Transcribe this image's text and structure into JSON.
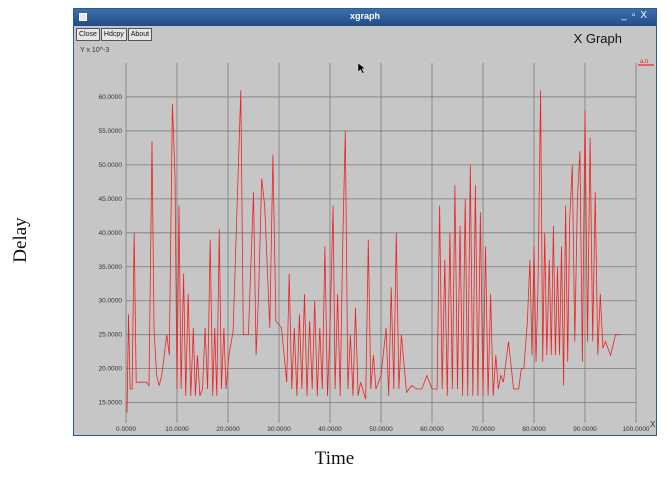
{
  "figure_labels": {
    "y_axis": "Delay",
    "x_axis": "Time"
  },
  "window": {
    "title": "xgraph",
    "controls": [
      "_",
      "▫",
      "X"
    ],
    "buttons": [
      {
        "label": "Close",
        "name": "close-button"
      },
      {
        "label": "Hdcpy",
        "name": "hardcopy-button"
      },
      {
        "label": "About",
        "name": "about-button"
      }
    ],
    "graph_title": "X Graph"
  },
  "colors": {
    "series": "#ee2222",
    "grid": "#7a7a7a",
    "panel": "#c6c6c6",
    "titlebar": "#2f5f9c"
  },
  "chart_data": {
    "type": "line",
    "title": "X Graph",
    "y_unit_label": "Y x 10^-3",
    "x_unit_label": "X",
    "legend": [
      {
        "name": "a.tr",
        "color": "#ee2222"
      }
    ],
    "legend_position": "top-right",
    "grid": true,
    "xlim": [
      0,
      100
    ],
    "ylim": [
      12,
      65
    ],
    "x_ticks": [
      "0.0000",
      "10.0000",
      "20.0000",
      "30.0000",
      "40.0000",
      "50.0000",
      "60.0000",
      "70.0000",
      "80.0000",
      "90.0000",
      "100.0000"
    ],
    "y_ticks": [
      "15.0000",
      "20.0000",
      "25.0000",
      "30.0000",
      "35.0000",
      "40.0000",
      "45.0000",
      "50.0000",
      "55.0000",
      "60.0000"
    ],
    "series": [
      {
        "name": "a.tr",
        "color": "#ee2222",
        "points": [
          [
            0.2,
            13.5
          ],
          [
            0.5,
            28
          ],
          [
            0.8,
            17
          ],
          [
            1.2,
            17
          ],
          [
            1.6,
            40
          ],
          [
            2,
            18
          ],
          [
            3,
            18
          ],
          [
            4,
            18
          ],
          [
            4.5,
            17.5
          ],
          [
            5.1,
            53.5
          ],
          [
            5.5,
            26
          ],
          [
            6,
            19
          ],
          [
            6.5,
            17.5
          ],
          [
            7,
            19
          ],
          [
            8,
            25
          ],
          [
            8.5,
            22
          ],
          [
            9.1,
            59
          ],
          [
            9.6,
            48.5
          ],
          [
            10,
            17
          ],
          [
            10.4,
            44
          ],
          [
            10.8,
            17
          ],
          [
            11.3,
            34
          ],
          [
            11.7,
            16
          ],
          [
            12.2,
            31
          ],
          [
            12.7,
            16
          ],
          [
            13.2,
            26
          ],
          [
            13.6,
            16
          ],
          [
            14,
            22
          ],
          [
            14.5,
            16
          ],
          [
            15,
            17
          ],
          [
            15.5,
            26
          ],
          [
            16,
            17
          ],
          [
            16.5,
            39
          ],
          [
            17,
            16
          ],
          [
            17.4,
            26
          ],
          [
            17.8,
            16
          ],
          [
            18.3,
            40.5
          ],
          [
            18.7,
            17
          ],
          [
            19.2,
            26
          ],
          [
            19.6,
            17
          ],
          [
            20.2,
            22
          ],
          [
            21,
            25.5
          ],
          [
            22.5,
            61
          ],
          [
            23,
            25
          ],
          [
            24,
            25
          ],
          [
            25,
            46
          ],
          [
            25.5,
            22
          ],
          [
            26,
            31
          ],
          [
            26.6,
            48
          ],
          [
            27.2,
            44
          ],
          [
            28.2,
            26
          ],
          [
            28.8,
            51.5
          ],
          [
            29.4,
            27
          ],
          [
            30.5,
            26
          ],
          [
            31.5,
            18
          ],
          [
            32,
            34
          ],
          [
            32.5,
            17
          ],
          [
            33,
            26
          ],
          [
            33.5,
            16
          ],
          [
            34,
            28
          ],
          [
            34.5,
            17
          ],
          [
            35,
            31
          ],
          [
            35.5,
            16
          ],
          [
            36,
            27
          ],
          [
            36.5,
            17
          ],
          [
            37,
            30
          ],
          [
            37.5,
            16
          ],
          [
            38,
            26
          ],
          [
            38.5,
            17
          ],
          [
            39,
            38
          ],
          [
            39.5,
            16
          ],
          [
            40,
            26
          ],
          [
            40.6,
            44
          ],
          [
            41,
            17
          ],
          [
            41.5,
            31
          ],
          [
            42,
            16
          ],
          [
            42.5,
            39
          ],
          [
            43,
            55
          ],
          [
            43.5,
            17
          ],
          [
            44,
            25
          ],
          [
            44.5,
            16
          ],
          [
            45,
            29
          ],
          [
            45.5,
            16
          ],
          [
            46,
            18
          ],
          [
            47,
            15.5
          ],
          [
            47.5,
            39
          ],
          [
            48,
            17
          ],
          [
            48.5,
            22
          ],
          [
            49,
            17
          ],
          [
            50,
            19
          ],
          [
            51,
            26
          ],
          [
            51.5,
            16
          ],
          [
            52,
            32
          ],
          [
            52.5,
            17
          ],
          [
            53,
            40
          ],
          [
            53.5,
            17
          ],
          [
            54,
            25
          ],
          [
            55,
            16.5
          ],
          [
            56,
            17.5
          ],
          [
            57,
            17
          ],
          [
            58,
            17
          ],
          [
            59,
            19
          ],
          [
            60,
            17
          ],
          [
            61,
            17
          ],
          [
            61.5,
            44
          ],
          [
            62,
            17
          ],
          [
            62.5,
            36
          ],
          [
            63,
            16
          ],
          [
            63.5,
            40
          ],
          [
            64,
            17
          ],
          [
            64.5,
            47
          ],
          [
            65,
            17
          ],
          [
            65.5,
            41
          ],
          [
            66,
            16
          ],
          [
            66.5,
            45
          ],
          [
            67,
            16
          ],
          [
            67.5,
            50
          ],
          [
            68,
            16
          ],
          [
            68.5,
            47
          ],
          [
            69,
            16
          ],
          [
            69.5,
            43
          ],
          [
            70,
            16
          ],
          [
            70.5,
            38
          ],
          [
            71,
            16
          ],
          [
            71.5,
            31
          ],
          [
            72,
            16
          ],
          [
            72.5,
            22
          ],
          [
            73,
            17
          ],
          [
            73.5,
            19
          ],
          [
            74,
            18
          ],
          [
            75,
            24
          ],
          [
            76,
            17
          ],
          [
            77,
            17
          ],
          [
            77.5,
            20
          ],
          [
            78,
            20
          ],
          [
            78.7,
            27
          ],
          [
            79.2,
            36
          ],
          [
            79.6,
            22
          ],
          [
            80,
            38
          ],
          [
            80.4,
            21
          ],
          [
            80.8,
            33
          ],
          [
            81.3,
            61
          ],
          [
            81.7,
            21
          ],
          [
            82.1,
            40
          ],
          [
            82.5,
            22
          ],
          [
            83,
            36
          ],
          [
            83.4,
            22
          ],
          [
            83.8,
            41
          ],
          [
            84.2,
            22
          ],
          [
            84.6,
            35
          ],
          [
            85,
            22
          ],
          [
            85.4,
            38
          ],
          [
            85.8,
            17.5
          ],
          [
            86.2,
            44
          ],
          [
            86.6,
            21
          ],
          [
            87,
            42
          ],
          [
            87.5,
            50
          ],
          [
            88,
            24
          ],
          [
            88.5,
            45
          ],
          [
            89,
            52
          ],
          [
            89.5,
            21
          ],
          [
            90,
            58
          ],
          [
            90.5,
            24
          ],
          [
            91,
            54
          ],
          [
            91.5,
            24
          ],
          [
            92,
            46
          ],
          [
            92.5,
            22
          ],
          [
            93,
            31
          ],
          [
            93.5,
            23
          ],
          [
            94,
            24
          ],
          [
            95,
            22
          ],
          [
            96,
            25
          ],
          [
            97,
            25
          ]
        ]
      }
    ]
  }
}
